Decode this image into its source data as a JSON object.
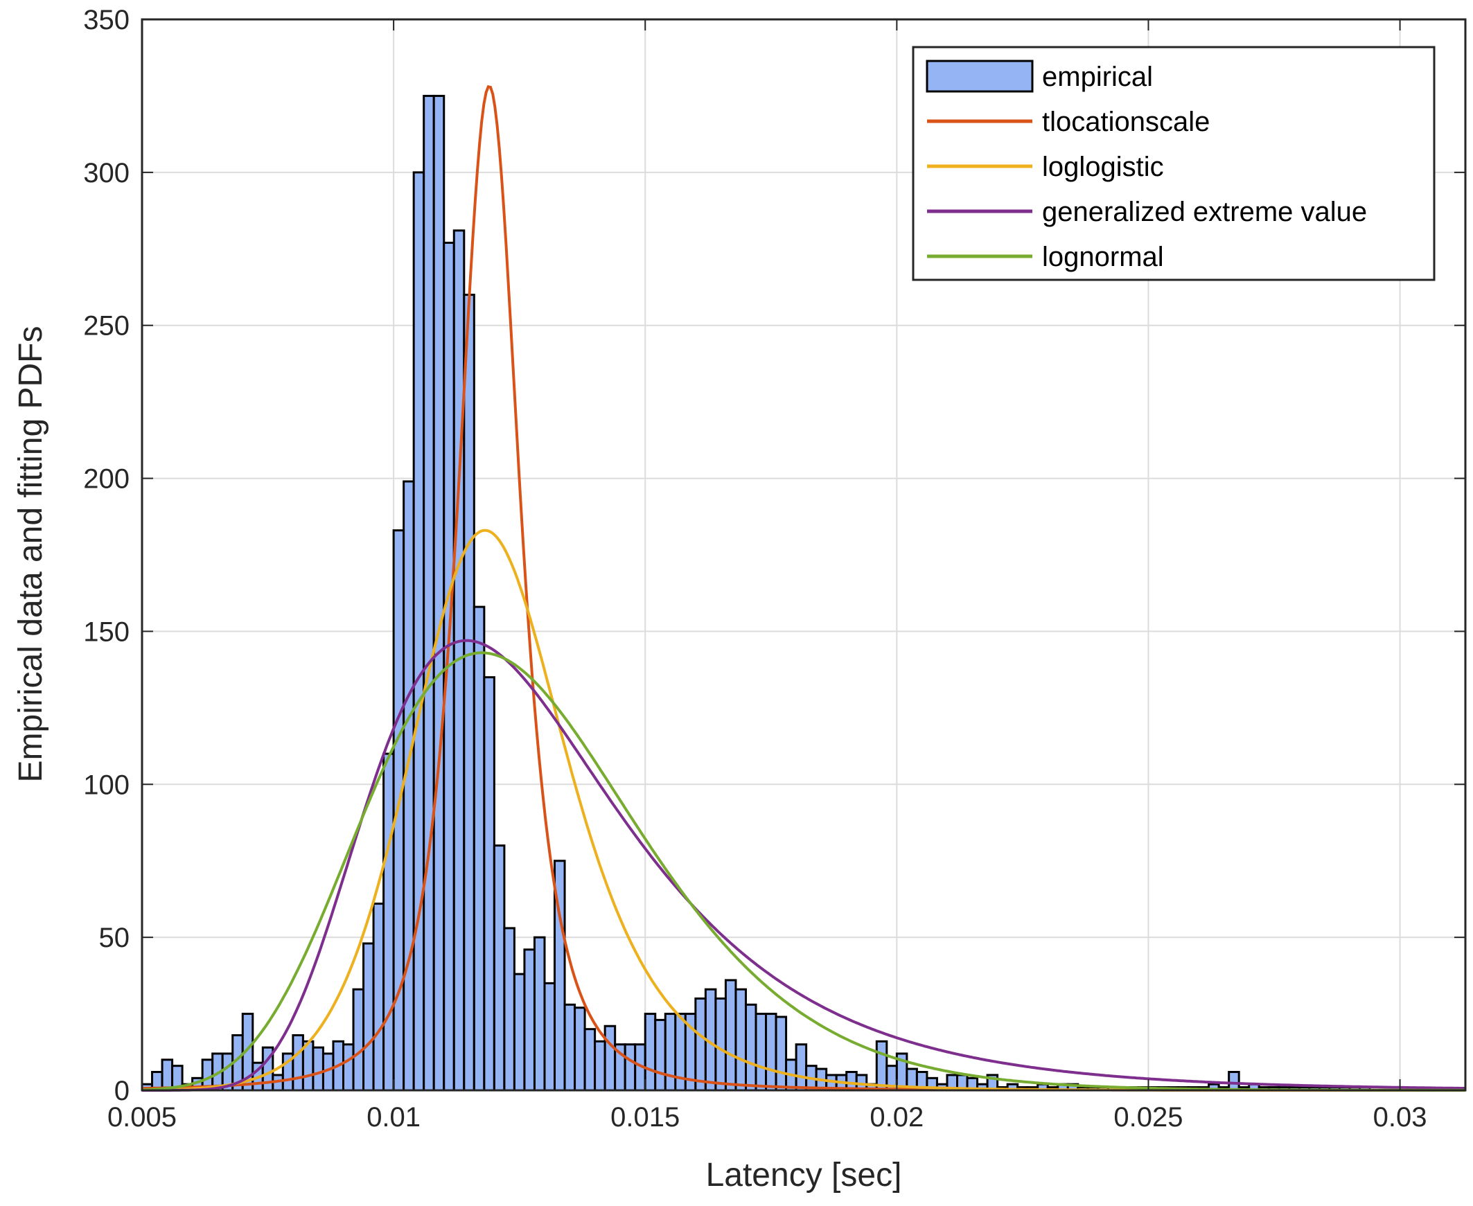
{
  "chart_data": {
    "type": "bar",
    "title": "",
    "xlabel": "Latency [sec]",
    "ylabel": "Empirical data and fitting PDFs",
    "xlim": [
      0.005,
      0.0313
    ],
    "ylim": [
      0,
      350
    ],
    "grid": true,
    "legend_position": "top-right",
    "xticks": [
      0.005,
      0.01,
      0.015,
      0.02,
      0.025,
      0.03
    ],
    "xtick_labels": [
      "0.005",
      "0.01",
      "0.015",
      "0.02",
      "0.025",
      "0.03"
    ],
    "yticks": [
      0,
      50,
      100,
      150,
      200,
      250,
      300,
      350
    ],
    "ytick_labels": [
      "0",
      "50",
      "100",
      "150",
      "200",
      "250",
      "300",
      "350"
    ],
    "histogram": {
      "name": "empirical",
      "bin_start": 0.005,
      "bin_width": 0.0002,
      "counts": [
        2,
        6,
        10,
        8,
        2,
        4,
        10,
        12,
        12,
        18,
        25,
        9,
        14,
        5,
        12,
        18,
        16,
        14,
        12,
        16,
        15,
        33,
        48,
        61,
        110,
        183,
        199,
        300,
        325,
        325,
        277,
        281,
        260,
        158,
        135,
        80,
        53,
        38,
        46,
        50,
        35,
        75,
        28,
        27,
        20,
        16,
        21,
        15,
        15,
        15,
        25,
        23,
        25,
        25,
        25,
        30,
        33,
        30,
        36,
        33,
        28,
        25,
        25,
        24,
        10,
        15,
        8,
        7,
        5,
        5,
        6,
        5,
        2,
        16,
        8,
        12,
        7,
        6,
        4,
        2,
        5,
        5,
        4,
        2,
        5,
        1,
        2,
        1,
        1,
        2,
        1,
        2,
        2,
        1,
        1,
        1,
        1,
        1,
        1,
        1,
        1,
        1,
        1,
        1,
        1,
        1,
        2,
        1,
        6,
        1,
        2,
        1,
        1,
        1,
        1,
        1,
        1,
        1,
        1,
        1,
        1,
        1
      ]
    },
    "series": [
      {
        "name": "tlocationscale",
        "color": "#d95319",
        "dist": "tlocationscale",
        "mu": 0.0119,
        "sigma": 0.00067,
        "nu": 2.2,
        "peak": 328
      },
      {
        "name": "loglogistic",
        "color": "#edb120",
        "dist": "loglogistic",
        "mu": 0.012,
        "s": 0.088,
        "peak": 183
      },
      {
        "name": "generalized extreme value",
        "color": "#7e2f8e",
        "dist": "gev",
        "k": 0.08,
        "sigma": 0.0026,
        "mu": 0.01165,
        "peak": 147
      },
      {
        "name": "lognormal",
        "color": "#77ac30",
        "dist": "lognormal",
        "mu": 0.0124,
        "sigma": 0.232,
        "peak": 143
      }
    ],
    "legend": [
      "empirical",
      "tlocationscale",
      "loglogistic",
      "generalized extreme value",
      "lognormal"
    ],
    "bar_color": "#94b4f4"
  }
}
